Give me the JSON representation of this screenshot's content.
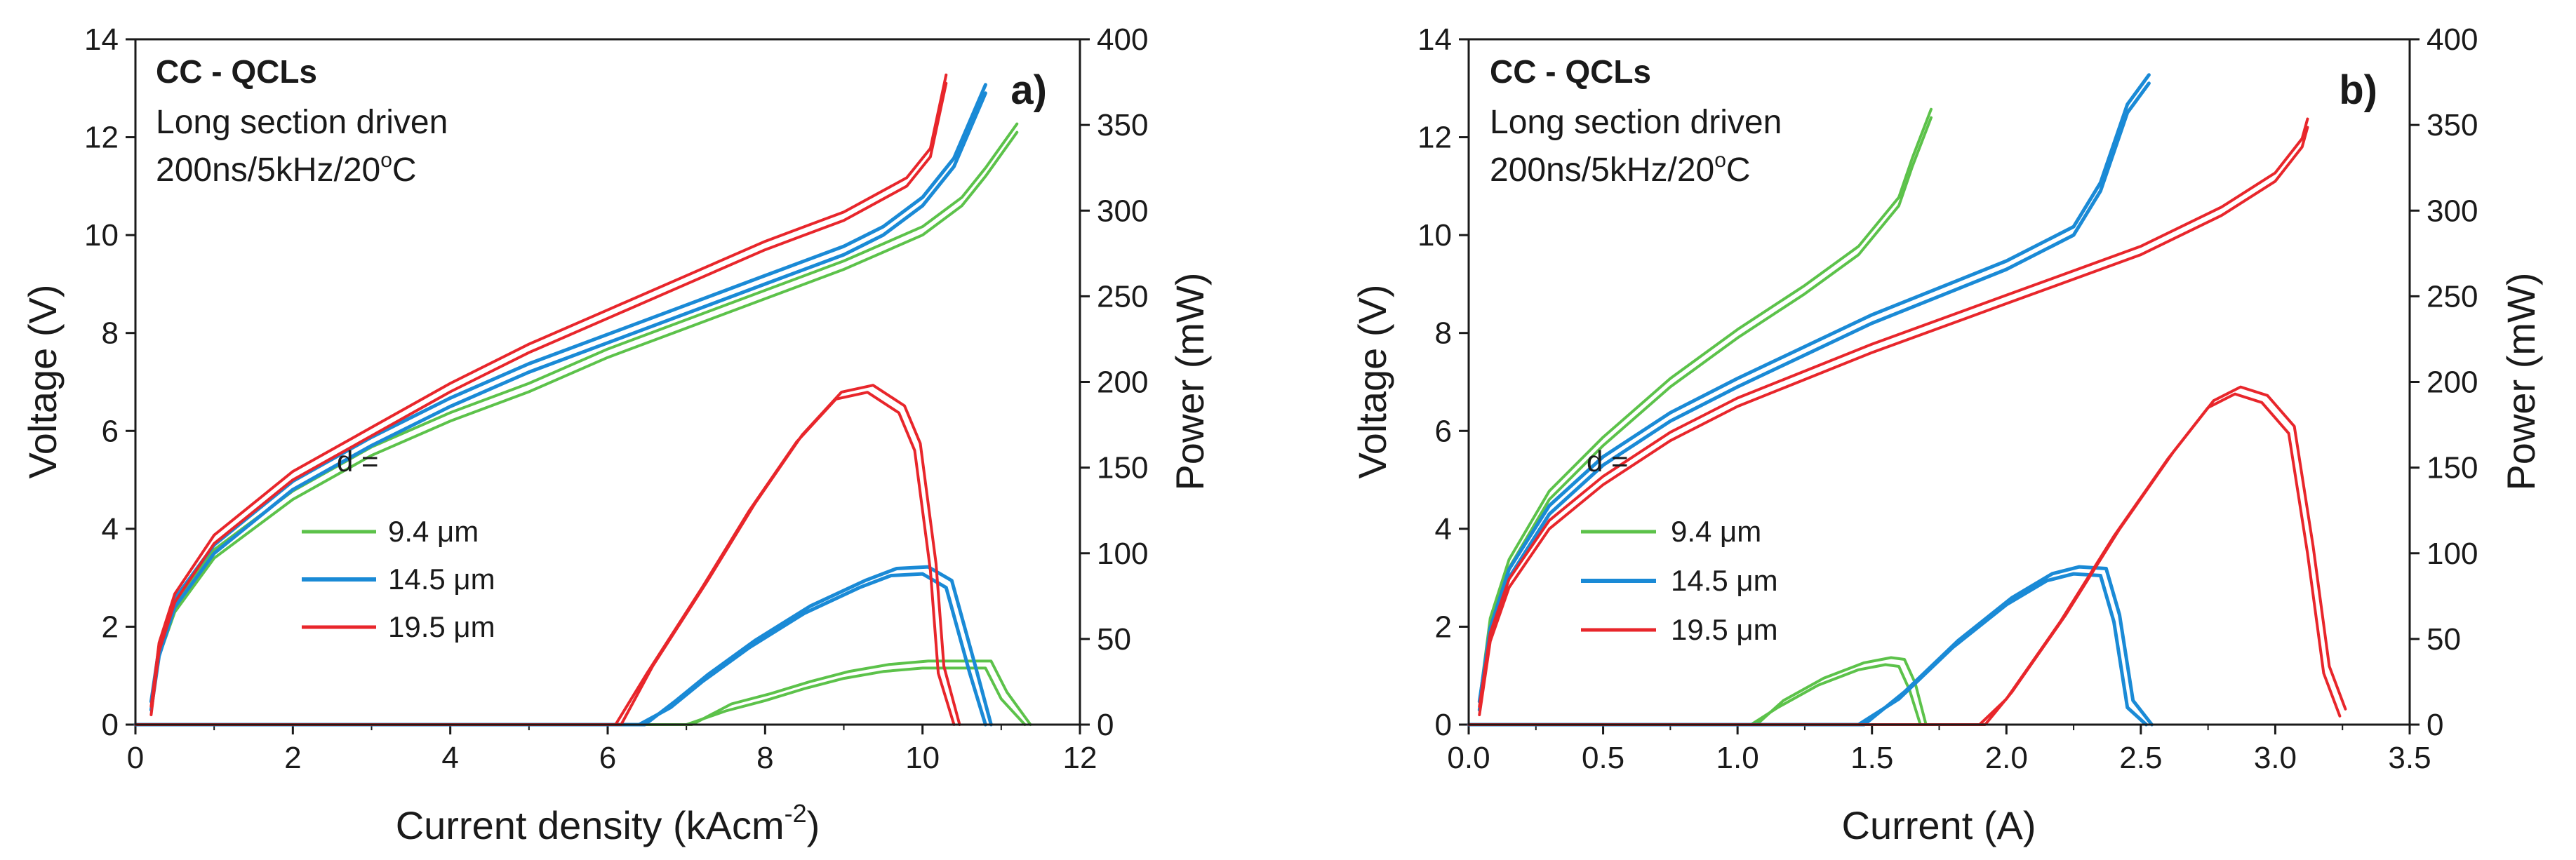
{
  "chart_data": [
    {
      "type": "line",
      "panel_label": "a)",
      "annotations": [
        "CC - QCLs",
        "Long section driven",
        "200ns/5kHz/20",
        "o",
        "C"
      ],
      "xlabel": "Current density (kAcm",
      "xlabel_sup": "-2",
      "xlabel_close": ")",
      "ylabel_left": "Voltage (V)",
      "ylabel_right": "Power (mW)",
      "xlim": [
        0,
        12
      ],
      "ylim_left": [
        0,
        14
      ],
      "ylim_right": [
        0,
        400
      ],
      "x_ticks": [
        "0",
        "2",
        "4",
        "6",
        "8",
        "10",
        "12"
      ],
      "y_left_ticks": [
        "0",
        "2",
        "4",
        "6",
        "8",
        "10",
        "12",
        "14"
      ],
      "y_right_ticks": [
        "0",
        "50",
        "100",
        "150",
        "200",
        "250",
        "300",
        "350",
        "400"
      ],
      "legend_title": "d =",
      "legend": [
        "9.4 μm",
        "14.5 μm",
        "19.5 μm"
      ],
      "series": [
        {
          "name": "9.4 μm",
          "color": "#5cc24a",
          "voltage": [
            [
              0.2,
              0.3
            ],
            [
              0.3,
              1.4
            ],
            [
              0.5,
              2.3
            ],
            [
              1,
              3.4
            ],
            [
              2,
              4.6
            ],
            [
              3,
              5.5
            ],
            [
              4,
              6.2
            ],
            [
              5,
              6.8
            ],
            [
              6,
              7.5
            ],
            [
              7,
              8.1
            ],
            [
              8,
              8.7
            ],
            [
              9,
              9.3
            ],
            [
              10,
              10.0
            ],
            [
              10.5,
              10.6
            ],
            [
              10.8,
              11.2
            ],
            [
              11.2,
              12.1
            ]
          ],
          "power": [
            [
              0,
              0
            ],
            [
              7.0,
              0
            ],
            [
              7.5,
              8
            ],
            [
              8,
              14
            ],
            [
              8.5,
              21
            ],
            [
              9,
              27
            ],
            [
              9.5,
              31
            ],
            [
              10,
              33
            ],
            [
              10.5,
              33
            ],
            [
              10.8,
              33
            ],
            [
              11.0,
              15
            ],
            [
              11.3,
              0
            ]
          ]
        },
        {
          "name": "14.5 μm",
          "color": "#1a8ad6",
          "voltage": [
            [
              0.2,
              0.3
            ],
            [
              0.3,
              1.4
            ],
            [
              0.5,
              2.4
            ],
            [
              1,
              3.5
            ],
            [
              2,
              4.8
            ],
            [
              3,
              5.7
            ],
            [
              4,
              6.5
            ],
            [
              5,
              7.2
            ],
            [
              6,
              7.8
            ],
            [
              7,
              8.4
            ],
            [
              8,
              9.0
            ],
            [
              9,
              9.6
            ],
            [
              9.5,
              10.0
            ],
            [
              10,
              10.6
            ],
            [
              10.4,
              11.4
            ],
            [
              10.8,
              12.9
            ]
          ],
          "power": [
            [
              0,
              0
            ],
            [
              6.4,
              0
            ],
            [
              6.8,
              10
            ],
            [
              7.2,
              25
            ],
            [
              7.8,
              45
            ],
            [
              8.5,
              65
            ],
            [
              9.2,
              80
            ],
            [
              9.6,
              87
            ],
            [
              10.0,
              88
            ],
            [
              10.3,
              80
            ],
            [
              10.6,
              30
            ],
            [
              10.8,
              0
            ]
          ]
        },
        {
          "name": "19.5 μm",
          "color": "#e8262b",
          "voltage": [
            [
              0.2,
              0.2
            ],
            [
              0.3,
              1.5
            ],
            [
              0.5,
              2.5
            ],
            [
              1,
              3.7
            ],
            [
              2,
              5.0
            ],
            [
              3,
              5.9
            ],
            [
              4,
              6.8
            ],
            [
              5,
              7.6
            ],
            [
              6,
              8.3
            ],
            [
              7,
              9.0
            ],
            [
              8,
              9.7
            ],
            [
              9,
              10.3
            ],
            [
              9.8,
              11.0
            ],
            [
              10.1,
              11.6
            ],
            [
              10.3,
              13.1
            ]
          ],
          "power": [
            [
              0,
              0
            ],
            [
              6.1,
              0
            ],
            [
              6.5,
              30
            ],
            [
              7.2,
              80
            ],
            [
              7.8,
              125
            ],
            [
              8.4,
              165
            ],
            [
              8.9,
              190
            ],
            [
              9.3,
              194
            ],
            [
              9.7,
              182
            ],
            [
              9.9,
              160
            ],
            [
              10.1,
              90
            ],
            [
              10.2,
              30
            ],
            [
              10.4,
              0
            ]
          ]
        }
      ]
    },
    {
      "type": "line",
      "panel_label": "b)",
      "annotations": [
        "CC - QCLs",
        "Long section driven",
        "200ns/5kHz/20",
        "o",
        "C"
      ],
      "xlabel": "Current (A)",
      "ylabel_left": "Voltage (V)",
      "ylabel_right": "Power (mW)",
      "xlim": [
        0,
        3.5
      ],
      "ylim_left": [
        0,
        14
      ],
      "ylim_right": [
        0,
        400
      ],
      "x_ticks": [
        "0.0",
        "0.5",
        "1.0",
        "1.5",
        "2.0",
        "2.5",
        "3.0",
        "3.5"
      ],
      "y_left_ticks": [
        "0",
        "2",
        "4",
        "6",
        "8",
        "10",
        "12",
        "14"
      ],
      "y_right_ticks": [
        "0",
        "50",
        "100",
        "150",
        "200",
        "250",
        "300",
        "350",
        "400"
      ],
      "legend_title": "d =",
      "legend": [
        "9.4 μm",
        "14.5 μm",
        "19.5 μm"
      ],
      "series": [
        {
          "name": "9.4 μm",
          "color": "#5cc24a",
          "voltage": [
            [
              0.04,
              0.3
            ],
            [
              0.08,
              2.0
            ],
            [
              0.15,
              3.2
            ],
            [
              0.3,
              4.6
            ],
            [
              0.5,
              5.7
            ],
            [
              0.75,
              6.9
            ],
            [
              1.0,
              7.9
            ],
            [
              1.25,
              8.8
            ],
            [
              1.45,
              9.6
            ],
            [
              1.6,
              10.6
            ],
            [
              1.65,
              11.4
            ],
            [
              1.72,
              12.4
            ]
          ],
          "power": [
            [
              0,
              0
            ],
            [
              1.05,
              0
            ],
            [
              1.15,
              10
            ],
            [
              1.3,
              23
            ],
            [
              1.45,
              32
            ],
            [
              1.55,
              35
            ],
            [
              1.6,
              34
            ],
            [
              1.64,
              20
            ],
            [
              1.68,
              0
            ]
          ]
        },
        {
          "name": "14.5 μm",
          "color": "#1a8ad6",
          "voltage": [
            [
              0.04,
              0.3
            ],
            [
              0.08,
              1.8
            ],
            [
              0.15,
              3.0
            ],
            [
              0.3,
              4.3
            ],
            [
              0.5,
              5.3
            ],
            [
              0.75,
              6.2
            ],
            [
              1.0,
              6.9
            ],
            [
              1.5,
              8.2
            ],
            [
              2.0,
              9.3
            ],
            [
              2.25,
              10.0
            ],
            [
              2.35,
              10.9
            ],
            [
              2.45,
              12.5
            ],
            [
              2.53,
              13.1
            ]
          ],
          "power": [
            [
              0,
              0
            ],
            [
              1.45,
              0
            ],
            [
              1.6,
              15
            ],
            [
              1.8,
              45
            ],
            [
              2.0,
              70
            ],
            [
              2.15,
              84
            ],
            [
              2.25,
              88
            ],
            [
              2.35,
              87
            ],
            [
              2.4,
              60
            ],
            [
              2.45,
              10
            ],
            [
              2.52,
              0
            ]
          ]
        },
        {
          "name": "19.5 μm",
          "color": "#e8262b",
          "voltage": [
            [
              0.04,
              0.2
            ],
            [
              0.08,
              1.7
            ],
            [
              0.15,
              2.8
            ],
            [
              0.3,
              4.0
            ],
            [
              0.5,
              4.9
            ],
            [
              0.75,
              5.8
            ],
            [
              1.0,
              6.5
            ],
            [
              1.5,
              7.6
            ],
            [
              2.0,
              8.6
            ],
            [
              2.5,
              9.6
            ],
            [
              2.8,
              10.4
            ],
            [
              3.0,
              11.1
            ],
            [
              3.1,
              11.8
            ],
            [
              3.12,
              12.2
            ]
          ],
          "power": [
            [
              0,
              0
            ],
            [
              1.9,
              0
            ],
            [
              2.0,
              15
            ],
            [
              2.2,
              60
            ],
            [
              2.4,
              110
            ],
            [
              2.6,
              155
            ],
            [
              2.75,
              185
            ],
            [
              2.85,
              193
            ],
            [
              2.95,
              188
            ],
            [
              3.05,
              170
            ],
            [
              3.12,
              100
            ],
            [
              3.18,
              30
            ],
            [
              3.24,
              5
            ]
          ]
        }
      ]
    }
  ]
}
